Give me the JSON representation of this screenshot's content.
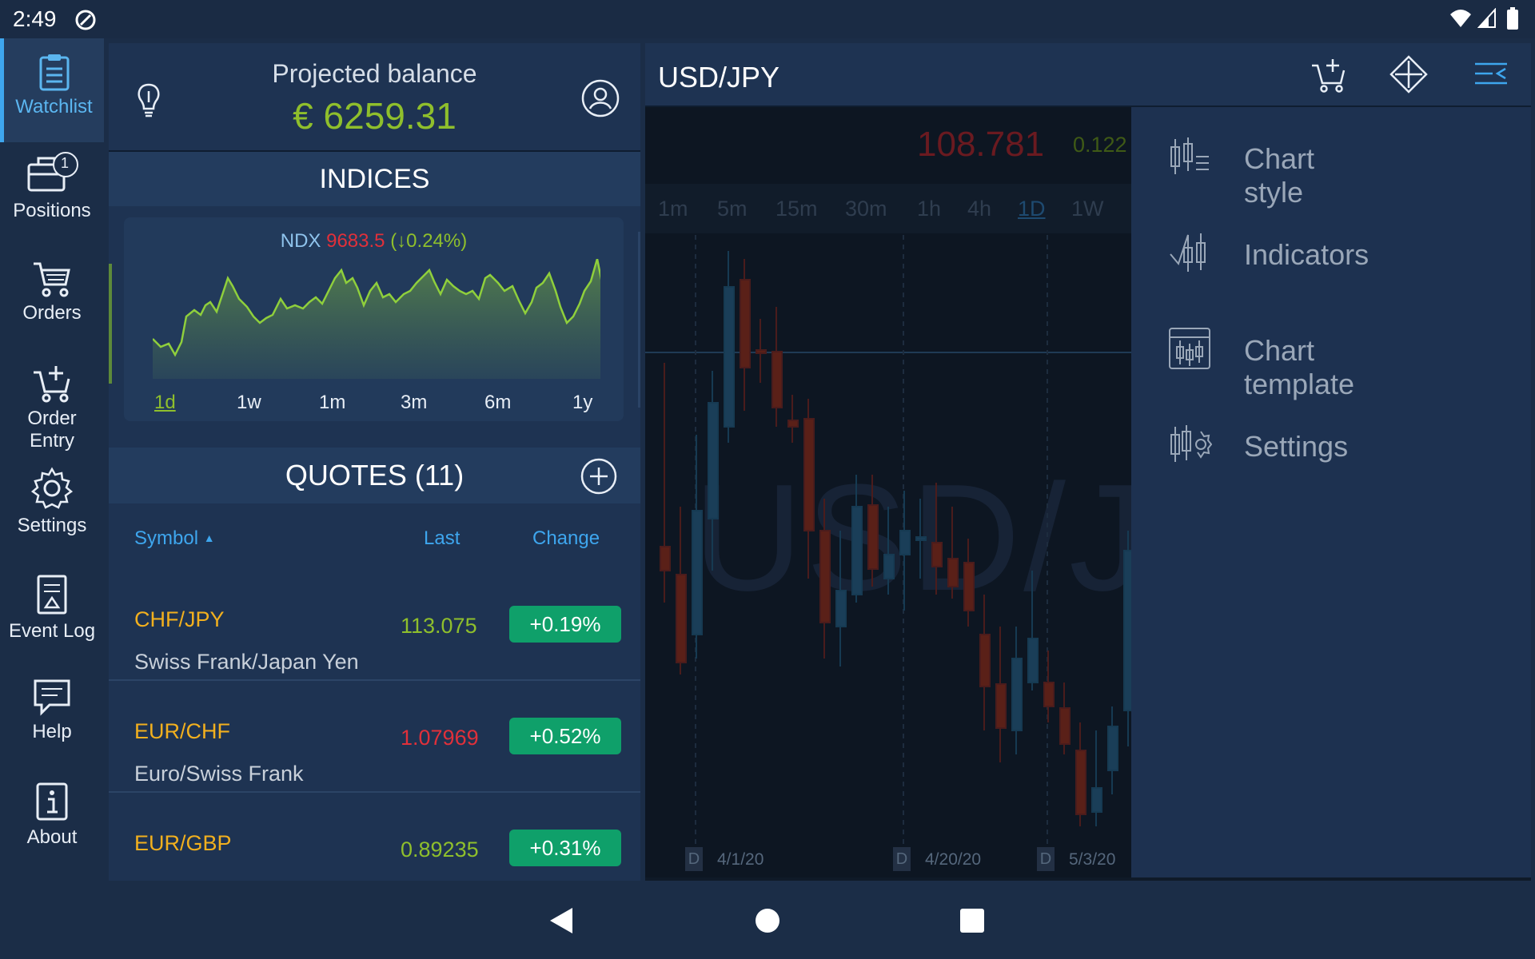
{
  "status_bar": {
    "time": "2:49"
  },
  "sidebar": {
    "items": [
      {
        "label": "Watchlist",
        "icon": "clipboard-icon",
        "active": true
      },
      {
        "label": "Positions",
        "icon": "briefcase-icon",
        "badge": "1"
      },
      {
        "label": "Orders",
        "icon": "cart-icon"
      },
      {
        "label": "Order",
        "label2": "Entry",
        "icon": "cart-plus-icon"
      },
      {
        "label": "Settings",
        "icon": "gear-icon"
      },
      {
        "label": "Event Log",
        "icon": "event-log-icon"
      },
      {
        "label": "Help",
        "icon": "chat-icon"
      },
      {
        "label": "About",
        "icon": "info-icon"
      }
    ]
  },
  "balance": {
    "title": "Projected balance",
    "value": "€ 6259.31"
  },
  "indices": {
    "title": "INDICES",
    "symbol": "NDX",
    "price": "9683.5",
    "change": "(↓0.24%)",
    "ranges": [
      "1d",
      "1w",
      "1m",
      "3m",
      "6m",
      "1y"
    ],
    "active_range": "1d"
  },
  "quotes": {
    "title": "QUOTES (11)",
    "headers": {
      "symbol": "Symbol",
      "last": "Last",
      "change": "Change"
    },
    "rows": [
      {
        "symbol": "CHF/JPY",
        "name": "Swiss Frank/Japan Yen",
        "last": "113.075",
        "change": "+0.19%",
        "last_color": "#8fbf2c"
      },
      {
        "symbol": "EUR/CHF",
        "name": "Euro/Swiss Frank",
        "last": "1.07969",
        "change": "+0.52%",
        "last_color": "#e0303a"
      },
      {
        "symbol": "EUR/GBP",
        "name": "",
        "last": "0.89235",
        "change": "+0.31%",
        "last_color": "#8fbf2c"
      }
    ]
  },
  "chart": {
    "pair": "USD/JPY",
    "price": "108.781",
    "change": "0.122",
    "watermark": "USD/J",
    "timeframes": [
      "1m",
      "5m",
      "15m",
      "30m",
      "1h",
      "4h",
      "1D",
      "1W"
    ],
    "active_timeframe": "1D",
    "dates": [
      {
        "tag": "D",
        "label": "4/1/20"
      },
      {
        "tag": "D",
        "label": "4/20/20"
      },
      {
        "tag": "D",
        "label": "5/3/20"
      }
    ]
  },
  "chart_menu": {
    "items": [
      {
        "label": "Chart style",
        "icon": "chart-style-icon"
      },
      {
        "label": "Indicators",
        "icon": "indicators-icon"
      },
      {
        "label": "Chart template",
        "icon": "chart-template-icon"
      },
      {
        "label": "Settings",
        "icon": "chart-settings-icon"
      }
    ]
  },
  "colors": {
    "accent_blue": "#3ea6ee",
    "accent_green": "#8fbf2c",
    "badge_green": "#0fa06a",
    "symbol_orange": "#f2b01e",
    "down_red": "#e0303a"
  }
}
